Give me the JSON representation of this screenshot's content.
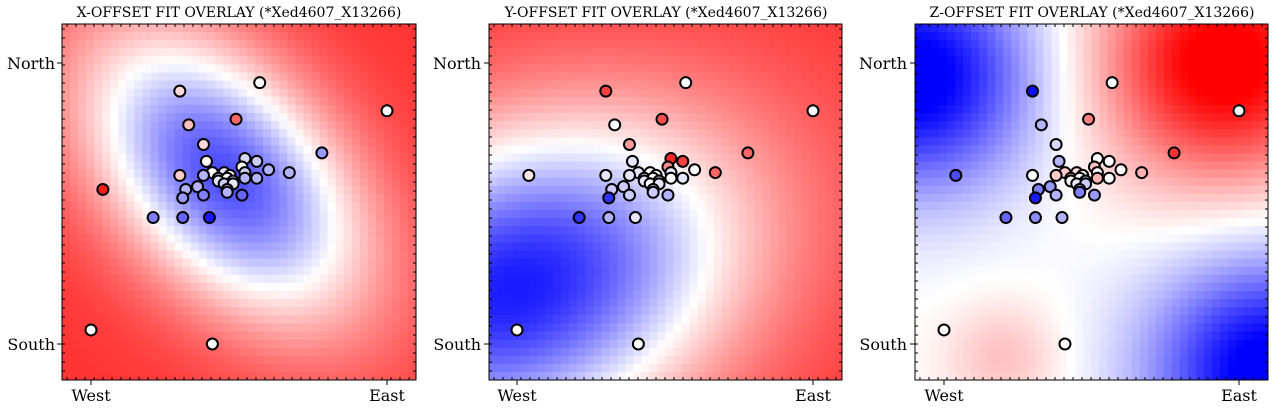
{
  "chart_data": [
    {
      "type": "scatter",
      "title": "X-OFFSET FIT OVERLAY (*Xed4607_X13266)",
      "xtick_labels": [
        "West",
        "East"
      ],
      "ytick_labels": [
        "North",
        "South"
      ],
      "background_field": {
        "colormap": "bwr",
        "kind": "gaussian-well",
        "center": [
          0.45,
          0.6
        ],
        "sx": 0.25,
        "sy": 0.42,
        "rotation_deg": 40,
        "strength": 1.5,
        "baseline": 0.8
      },
      "points": [
        {
          "x": 0.04,
          "y": 0.55,
          "c": 0.9
        },
        {
          "x": 0.0,
          "y": 0.05,
          "c": 0.0
        },
        {
          "x": 0.3,
          "y": 0.9,
          "c": 0.15
        },
        {
          "x": 0.57,
          "y": 0.93,
          "c": 0.0
        },
        {
          "x": 0.49,
          "y": 0.8,
          "c": 0.6
        },
        {
          "x": 0.33,
          "y": 0.78,
          "c": 0.25
        },
        {
          "x": 0.38,
          "y": 0.71,
          "c": 0.15
        },
        {
          "x": 1.0,
          "y": 0.83,
          "c": 0.0
        },
        {
          "x": 0.78,
          "y": 0.68,
          "c": -0.4
        },
        {
          "x": 0.52,
          "y": 0.66,
          "c": -0.15
        },
        {
          "x": 0.56,
          "y": 0.65,
          "c": -0.2
        },
        {
          "x": 0.39,
          "y": 0.65,
          "c": 0.0
        },
        {
          "x": 0.3,
          "y": 0.6,
          "c": 0.2
        },
        {
          "x": 0.41,
          "y": 0.61,
          "c": 0.0
        },
        {
          "x": 0.45,
          "y": 0.61,
          "c": -0.1
        },
        {
          "x": 0.47,
          "y": 0.6,
          "c": 0.0
        },
        {
          "x": 0.51,
          "y": 0.63,
          "c": 0.0
        },
        {
          "x": 0.52,
          "y": 0.61,
          "c": -0.2
        },
        {
          "x": 0.6,
          "y": 0.62,
          "c": -0.3
        },
        {
          "x": 0.67,
          "y": 0.61,
          "c": -0.3
        },
        {
          "x": 0.38,
          "y": 0.6,
          "c": -0.3
        },
        {
          "x": 0.43,
          "y": 0.59,
          "c": -0.1
        },
        {
          "x": 0.46,
          "y": 0.59,
          "c": 0.0
        },
        {
          "x": 0.48,
          "y": 0.58,
          "c": -0.2
        },
        {
          "x": 0.52,
          "y": 0.59,
          "c": -0.3
        },
        {
          "x": 0.56,
          "y": 0.59,
          "c": -0.3
        },
        {
          "x": 0.43,
          "y": 0.58,
          "c": -0.1
        },
        {
          "x": 0.45,
          "y": 0.57,
          "c": -0.2
        },
        {
          "x": 0.48,
          "y": 0.57,
          "c": -0.1
        },
        {
          "x": 0.36,
          "y": 0.56,
          "c": -0.3
        },
        {
          "x": 0.46,
          "y": 0.55,
          "c": -0.2
        },
        {
          "x": 0.32,
          "y": 0.55,
          "c": -0.3
        },
        {
          "x": 0.46,
          "y": 0.54,
          "c": -0.3
        },
        {
          "x": 0.38,
          "y": 0.53,
          "c": -0.5
        },
        {
          "x": 0.31,
          "y": 0.52,
          "c": -0.4
        },
        {
          "x": 0.51,
          "y": 0.53,
          "c": -0.6
        },
        {
          "x": 0.21,
          "y": 0.45,
          "c": -0.5
        },
        {
          "x": 0.31,
          "y": 0.45,
          "c": -0.6
        },
        {
          "x": 0.4,
          "y": 0.45,
          "c": -0.9
        },
        {
          "x": 0.41,
          "y": 0.0,
          "c": 0.0
        }
      ]
    },
    {
      "type": "scatter",
      "title": "Y-OFFSET FIT OVERLAY (*Xed4607_X13266)",
      "xtick_labels": [
        "West",
        "East"
      ],
      "ytick_labels": [
        "North",
        "South"
      ],
      "background_field": {
        "colormap": "bwr",
        "kind": "gaussian-well",
        "center": [
          0.0,
          0.2
        ],
        "sx": 0.55,
        "sy": 0.38,
        "rotation_deg": 25,
        "strength": 1.7,
        "baseline": 0.8
      },
      "points": [
        {
          "x": 0.04,
          "y": 0.6,
          "c": 0.1
        },
        {
          "x": 0.0,
          "y": 0.05,
          "c": 0.0
        },
        {
          "x": 0.3,
          "y": 0.9,
          "c": 0.75
        },
        {
          "x": 0.57,
          "y": 0.93,
          "c": 0.0
        },
        {
          "x": 0.49,
          "y": 0.8,
          "c": 0.7
        },
        {
          "x": 0.33,
          "y": 0.78,
          "c": 0.0
        },
        {
          "x": 0.38,
          "y": 0.71,
          "c": 0.4
        },
        {
          "x": 1.0,
          "y": 0.83,
          "c": 0.0
        },
        {
          "x": 0.78,
          "y": 0.68,
          "c": 0.6
        },
        {
          "x": 0.52,
          "y": 0.66,
          "c": 0.85
        },
        {
          "x": 0.56,
          "y": 0.65,
          "c": 0.75
        },
        {
          "x": 0.39,
          "y": 0.65,
          "c": -0.1
        },
        {
          "x": 0.3,
          "y": 0.6,
          "c": -0.1
        },
        {
          "x": 0.41,
          "y": 0.61,
          "c": -0.1
        },
        {
          "x": 0.45,
          "y": 0.61,
          "c": 0.0
        },
        {
          "x": 0.47,
          "y": 0.6,
          "c": 0.0
        },
        {
          "x": 0.51,
          "y": 0.63,
          "c": 0.45
        },
        {
          "x": 0.52,
          "y": 0.61,
          "c": -0.1
        },
        {
          "x": 0.6,
          "y": 0.62,
          "c": 0.0
        },
        {
          "x": 0.67,
          "y": 0.61,
          "c": 0.6
        },
        {
          "x": 0.38,
          "y": 0.6,
          "c": -0.1
        },
        {
          "x": 0.43,
          "y": 0.59,
          "c": 0.0
        },
        {
          "x": 0.46,
          "y": 0.59,
          "c": 0.0
        },
        {
          "x": 0.48,
          "y": 0.58,
          "c": -0.1
        },
        {
          "x": 0.52,
          "y": 0.59,
          "c": 0.0
        },
        {
          "x": 0.56,
          "y": 0.59,
          "c": -0.1
        },
        {
          "x": 0.43,
          "y": 0.58,
          "c": -0.1
        },
        {
          "x": 0.45,
          "y": 0.57,
          "c": 0.0
        },
        {
          "x": 0.48,
          "y": 0.57,
          "c": -0.1
        },
        {
          "x": 0.36,
          "y": 0.56,
          "c": -0.2
        },
        {
          "x": 0.46,
          "y": 0.55,
          "c": -0.1
        },
        {
          "x": 0.32,
          "y": 0.55,
          "c": -0.2
        },
        {
          "x": 0.46,
          "y": 0.54,
          "c": -0.2
        },
        {
          "x": 0.38,
          "y": 0.53,
          "c": -0.2
        },
        {
          "x": 0.31,
          "y": 0.52,
          "c": -0.8
        },
        {
          "x": 0.51,
          "y": 0.53,
          "c": -0.3
        },
        {
          "x": 0.21,
          "y": 0.45,
          "c": -0.8
        },
        {
          "x": 0.31,
          "y": 0.45,
          "c": -0.3
        },
        {
          "x": 0.4,
          "y": 0.45,
          "c": -0.1
        },
        {
          "x": 0.41,
          "y": 0.0,
          "c": 0.0
        }
      ]
    },
    {
      "type": "scatter",
      "title": "Z-OFFSET FIT OVERLAY (*Xed4607_X13266)",
      "xtick_labels": [
        "West",
        "East"
      ],
      "ytick_labels": [
        "North",
        "South"
      ],
      "background_field": {
        "colormap": "bwr",
        "kind": "tilted-plane",
        "red_center": [
          0.95,
          1.0
        ],
        "blue_centers": [
          [
            -0.1,
            0.95
          ],
          [
            1.1,
            -0.1
          ]
        ],
        "white_center": [
          0.1,
          0.05
        ]
      },
      "points": [
        {
          "x": 0.04,
          "y": 0.6,
          "c": -0.7
        },
        {
          "x": 0.0,
          "y": 0.05,
          "c": 0.0
        },
        {
          "x": 0.3,
          "y": 0.9,
          "c": -0.95
        },
        {
          "x": 0.57,
          "y": 0.93,
          "c": 0.0
        },
        {
          "x": 0.49,
          "y": 0.8,
          "c": 0.5
        },
        {
          "x": 0.33,
          "y": 0.78,
          "c": -0.3
        },
        {
          "x": 0.38,
          "y": 0.71,
          "c": -0.15
        },
        {
          "x": 1.0,
          "y": 0.83,
          "c": 0.0
        },
        {
          "x": 0.78,
          "y": 0.68,
          "c": 0.8
        },
        {
          "x": 0.52,
          "y": 0.66,
          "c": 0.0
        },
        {
          "x": 0.56,
          "y": 0.65,
          "c": 0.0
        },
        {
          "x": 0.39,
          "y": 0.65,
          "c": -0.3
        },
        {
          "x": 0.3,
          "y": 0.6,
          "c": 0.0
        },
        {
          "x": 0.41,
          "y": 0.61,
          "c": 0.2
        },
        {
          "x": 0.45,
          "y": 0.61,
          "c": 0.15
        },
        {
          "x": 0.47,
          "y": 0.6,
          "c": 0.0
        },
        {
          "x": 0.51,
          "y": 0.63,
          "c": 0.25
        },
        {
          "x": 0.52,
          "y": 0.61,
          "c": 0.0
        },
        {
          "x": 0.6,
          "y": 0.62,
          "c": 0.0
        },
        {
          "x": 0.67,
          "y": 0.61,
          "c": 0.3
        },
        {
          "x": 0.38,
          "y": 0.6,
          "c": 0.2
        },
        {
          "x": 0.43,
          "y": 0.59,
          "c": 0.25
        },
        {
          "x": 0.46,
          "y": 0.59,
          "c": 0.0
        },
        {
          "x": 0.48,
          "y": 0.58,
          "c": -0.2
        },
        {
          "x": 0.52,
          "y": 0.59,
          "c": 0.3
        },
        {
          "x": 0.56,
          "y": 0.59,
          "c": 0.0
        },
        {
          "x": 0.43,
          "y": 0.58,
          "c": 0.0
        },
        {
          "x": 0.45,
          "y": 0.57,
          "c": -0.1
        },
        {
          "x": 0.48,
          "y": 0.57,
          "c": -0.2
        },
        {
          "x": 0.36,
          "y": 0.56,
          "c": -0.4
        },
        {
          "x": 0.46,
          "y": 0.55,
          "c": -0.3
        },
        {
          "x": 0.32,
          "y": 0.55,
          "c": -0.5
        },
        {
          "x": 0.46,
          "y": 0.54,
          "c": -0.5
        },
        {
          "x": 0.38,
          "y": 0.53,
          "c": -0.3
        },
        {
          "x": 0.31,
          "y": 0.52,
          "c": -0.9
        },
        {
          "x": 0.51,
          "y": 0.53,
          "c": -0.4
        },
        {
          "x": 0.21,
          "y": 0.45,
          "c": -0.6
        },
        {
          "x": 0.31,
          "y": 0.45,
          "c": -0.45
        },
        {
          "x": 0.4,
          "y": 0.45,
          "c": -0.3
        },
        {
          "x": 0.41,
          "y": 0.0,
          "c": 0.0
        }
      ]
    }
  ],
  "style": {
    "marker_edge_color": "#000000",
    "colormap_low": "#0000ff",
    "colormap_mid": "#ffffff",
    "colormap_high": "#ff0000"
  }
}
